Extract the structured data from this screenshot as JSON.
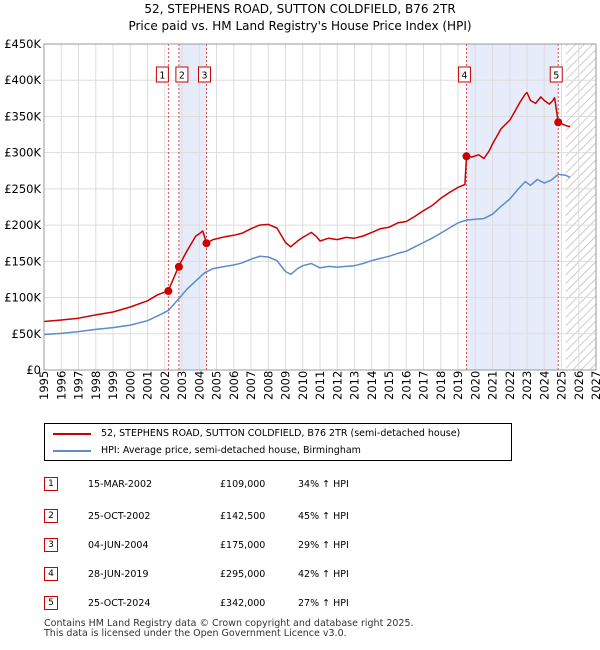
{
  "title": {
    "line1": "52, STEPHENS ROAD, SUTTON COLDFIELD, B76 2TR",
    "line2": "Price paid vs. HM Land Registry's House Price Index (HPI)"
  },
  "colors": {
    "property": "#cc0000",
    "hpi": "#5b8ccc",
    "shade": "#e6ecf9",
    "marker_border": "#cc0000",
    "grid": "#dddddd"
  },
  "chart_data": {
    "type": "line",
    "title": "52, STEPHENS ROAD, SUTTON COLDFIELD, B76 2TR - Price paid vs. HM Land Registry's House Price Index (HPI)",
    "xlabel": "",
    "ylabel": "",
    "xlim": [
      1995,
      2027
    ],
    "ylim": [
      0,
      450000
    ],
    "x_ticks": [
      "1995",
      "1996",
      "1997",
      "1998",
      "1999",
      "2000",
      "2001",
      "2002",
      "2003",
      "2004",
      "2005",
      "2006",
      "2007",
      "2008",
      "2009",
      "2010",
      "2011",
      "2012",
      "2013",
      "2014",
      "2015",
      "2016",
      "2017",
      "2018",
      "2019",
      "2020",
      "2021",
      "2022",
      "2023",
      "2024",
      "2025",
      "2026",
      "2027"
    ],
    "y_ticks": [
      {
        "value": 0,
        "label": "£0"
      },
      {
        "value": 50000,
        "label": "£50K"
      },
      {
        "value": 100000,
        "label": "£100K"
      },
      {
        "value": 150000,
        "label": "£150K"
      },
      {
        "value": 200000,
        "label": "£200K"
      },
      {
        "value": 250000,
        "label": "£250K"
      },
      {
        "value": 300000,
        "label": "£300K"
      },
      {
        "value": 350000,
        "label": "£350K"
      },
      {
        "value": 400000,
        "label": "£400K"
      },
      {
        "value": 450000,
        "label": "£450K"
      }
    ],
    "grid": true,
    "shaded_ranges": [
      [
        2002.83,
        2004.42
      ],
      [
        2019.49,
        2024.81
      ]
    ],
    "hatched_from": 2025.25,
    "series": [
      {
        "name": "52, STEPHENS ROAD, SUTTON COLDFIELD, B76 2TR (semi-detached house)",
        "color": "#cc0000",
        "points": [
          [
            1995.0,
            67000
          ],
          [
            1996.0,
            69000
          ],
          [
            1997.0,
            71500
          ],
          [
            1998.0,
            76000
          ],
          [
            1999.0,
            80000
          ],
          [
            2000.0,
            87000
          ],
          [
            2001.0,
            95500
          ],
          [
            2001.6,
            104000
          ],
          [
            2002.2,
            109000
          ],
          [
            2002.8,
            142500
          ],
          [
            2003.3,
            165000
          ],
          [
            2003.8,
            185000
          ],
          [
            2004.0,
            188000
          ],
          [
            2004.2,
            192000
          ],
          [
            2004.42,
            175000
          ],
          [
            2004.8,
            180000
          ],
          [
            2005.5,
            184000
          ],
          [
            2006.0,
            186000
          ],
          [
            2006.5,
            189000
          ],
          [
            2007.0,
            195000
          ],
          [
            2007.5,
            200000
          ],
          [
            2008.0,
            201000
          ],
          [
            2008.5,
            196000
          ],
          [
            2009.0,
            176000
          ],
          [
            2009.3,
            170000
          ],
          [
            2009.7,
            178000
          ],
          [
            2010.0,
            183000
          ],
          [
            2010.5,
            190000
          ],
          [
            2010.8,
            184000
          ],
          [
            2011.0,
            178000
          ],
          [
            2011.5,
            182000
          ],
          [
            2012.0,
            180000
          ],
          [
            2012.5,
            183000
          ],
          [
            2013.0,
            182000
          ],
          [
            2013.5,
            185000
          ],
          [
            2014.0,
            190000
          ],
          [
            2014.5,
            195000
          ],
          [
            2015.0,
            197000
          ],
          [
            2015.5,
            203000
          ],
          [
            2016.0,
            205000
          ],
          [
            2016.5,
            212000
          ],
          [
            2017.0,
            220000
          ],
          [
            2017.5,
            227000
          ],
          [
            2018.0,
            237000
          ],
          [
            2018.5,
            245000
          ],
          [
            2019.0,
            252000
          ],
          [
            2019.4,
            256000
          ],
          [
            2019.49,
            295000
          ],
          [
            2019.8,
            294000
          ],
          [
            2020.2,
            297000
          ],
          [
            2020.5,
            292000
          ],
          [
            2020.8,
            302000
          ],
          [
            2021.0,
            312000
          ],
          [
            2021.5,
            333000
          ],
          [
            2022.0,
            345000
          ],
          [
            2022.3,
            357000
          ],
          [
            2022.6,
            370000
          ],
          [
            2022.9,
            381000
          ],
          [
            2023.0,
            383000
          ],
          [
            2023.2,
            372000
          ],
          [
            2023.5,
            368000
          ],
          [
            2023.8,
            377000
          ],
          [
            2024.0,
            372000
          ],
          [
            2024.3,
            367000
          ],
          [
            2024.5,
            372000
          ],
          [
            2024.6,
            376000
          ],
          [
            2024.81,
            342000
          ],
          [
            2025.0,
            340000
          ],
          [
            2025.3,
            337000
          ],
          [
            2025.5,
            336000
          ]
        ]
      },
      {
        "name": "HPI: Average price, semi-detached house, Birmingham",
        "color": "#5b8ccc",
        "points": [
          [
            1995.0,
            49000
          ],
          [
            1996.0,
            50500
          ],
          [
            1997.0,
            53000
          ],
          [
            1998.0,
            56000
          ],
          [
            1999.0,
            58500
          ],
          [
            2000.0,
            62000
          ],
          [
            2001.0,
            68000
          ],
          [
            2001.7,
            76000
          ],
          [
            2002.2,
            82000
          ],
          [
            2002.8,
            98000
          ],
          [
            2003.3,
            112000
          ],
          [
            2003.8,
            123000
          ],
          [
            2004.3,
            134000
          ],
          [
            2004.8,
            140000
          ],
          [
            2005.5,
            143000
          ],
          [
            2006.0,
            145000
          ],
          [
            2006.5,
            148000
          ],
          [
            2007.0,
            153000
          ],
          [
            2007.5,
            157000
          ],
          [
            2008.0,
            156000
          ],
          [
            2008.5,
            151000
          ],
          [
            2009.0,
            136000
          ],
          [
            2009.3,
            132000
          ],
          [
            2009.7,
            140000
          ],
          [
            2010.0,
            144000
          ],
          [
            2010.5,
            147000
          ],
          [
            2011.0,
            141000
          ],
          [
            2011.5,
            143000
          ],
          [
            2012.0,
            142000
          ],
          [
            2012.5,
            143000
          ],
          [
            2013.0,
            144000
          ],
          [
            2013.5,
            147000
          ],
          [
            2014.0,
            151000
          ],
          [
            2014.5,
            154000
          ],
          [
            2015.0,
            157000
          ],
          [
            2015.5,
            161000
          ],
          [
            2016.0,
            164000
          ],
          [
            2016.5,
            170000
          ],
          [
            2017.0,
            176000
          ],
          [
            2017.5,
            182000
          ],
          [
            2018.0,
            189000
          ],
          [
            2018.5,
            196000
          ],
          [
            2019.0,
            203000
          ],
          [
            2019.5,
            207000
          ],
          [
            2020.0,
            208000
          ],
          [
            2020.5,
            209000
          ],
          [
            2021.0,
            215000
          ],
          [
            2021.5,
            226000
          ],
          [
            2022.0,
            236000
          ],
          [
            2022.5,
            250000
          ],
          [
            2022.9,
            260000
          ],
          [
            2023.2,
            255000
          ],
          [
            2023.6,
            263000
          ],
          [
            2024.0,
            258000
          ],
          [
            2024.4,
            262000
          ],
          [
            2024.8,
            270000
          ],
          [
            2025.2,
            269000
          ],
          [
            2025.5,
            266000
          ]
        ]
      }
    ],
    "markers": [
      {
        "label": "1",
        "x": 2002.21,
        "y": 109000
      },
      {
        "label": "2",
        "x": 2002.82,
        "y": 142500
      },
      {
        "label": "3",
        "x": 2004.42,
        "y": 175000
      },
      {
        "label": "4",
        "x": 2019.49,
        "y": 295000
      },
      {
        "label": "5",
        "x": 2024.81,
        "y": 342000
      }
    ]
  },
  "legend": {
    "property_label": "52, STEPHENS ROAD, SUTTON COLDFIELD, B76 2TR (semi-detached house)",
    "hpi_label": "HPI: Average price, semi-detached house, Birmingham"
  },
  "transactions": [
    {
      "num": "1",
      "date": "15-MAR-2002",
      "price": "£109,000",
      "hpi": "34% ↑ HPI"
    },
    {
      "num": "2",
      "date": "25-OCT-2002",
      "price": "£142,500",
      "hpi": "45% ↑ HPI"
    },
    {
      "num": "3",
      "date": "04-JUN-2004",
      "price": "£175,000",
      "hpi": "29% ↑ HPI"
    },
    {
      "num": "4",
      "date": "28-JUN-2019",
      "price": "£295,000",
      "hpi": "42% ↑ HPI"
    },
    {
      "num": "5",
      "date": "25-OCT-2024",
      "price": "£342,000",
      "hpi": "27% ↑ HPI"
    }
  ],
  "footer": {
    "line1": "Contains HM Land Registry data © Crown copyright and database right 2025.",
    "line2": "This data is licensed under the Open Government Licence v3.0."
  }
}
